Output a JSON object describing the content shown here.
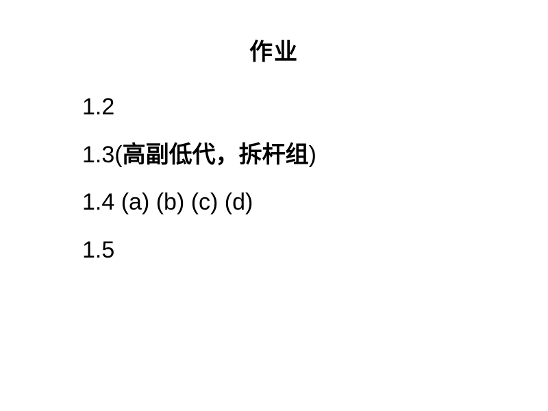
{
  "title": "作业",
  "items": [
    {
      "number": "1.2",
      "rest": ""
    },
    {
      "number": "1.3",
      "paren_open": "(",
      "cjk_text": "高副低代，拆杆组",
      "paren_close": ")"
    },
    {
      "number": "1.4",
      "rest": " (a) (b) (c) (d)"
    },
    {
      "number": "1.5",
      "rest": ""
    }
  ],
  "colors": {
    "background": "#ffffff",
    "text": "#000000"
  },
  "fonts": {
    "title_size": 34,
    "item_size": 34
  }
}
